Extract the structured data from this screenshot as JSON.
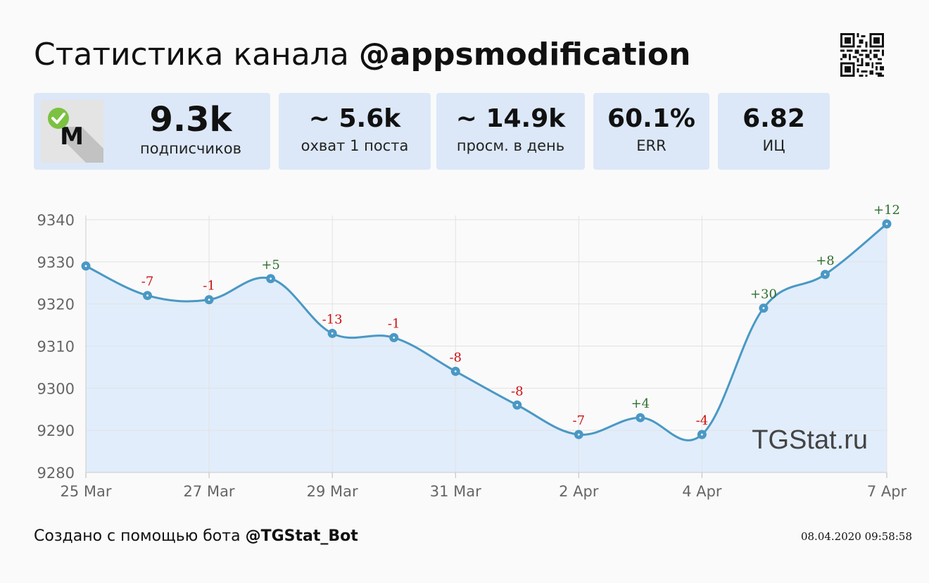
{
  "header": {
    "title_prefix": "Статистика канала ",
    "channel_handle": "@appsmodification"
  },
  "stats": [
    {
      "value": "9.3k",
      "label": "подписчиков"
    },
    {
      "value": "~ 5.6k",
      "label": "охват 1 поста"
    },
    {
      "value": "~ 14.9k",
      "label": "просм. в день"
    },
    {
      "value": "60.1%",
      "label": "ERR"
    },
    {
      "value": "6.82",
      "label": "ИЦ"
    }
  ],
  "avatar": {
    "icon": "channel-avatar-icon",
    "badge": "verified-check-icon",
    "letter": "M"
  },
  "chart_data": {
    "type": "line",
    "title": "",
    "xlabel": "",
    "ylabel": "",
    "watermark": "TGStat.ru",
    "x": [
      "25 Mar",
      "26 Mar",
      "27 Mar",
      "28 Mar",
      "29 Mar",
      "30 Mar",
      "31 Mar",
      "1 Apr",
      "2 Apr",
      "3 Apr",
      "4 Apr",
      "5 Apr",
      "6 Apr",
      "7 Apr"
    ],
    "x_tick_labels": [
      "25 Mar",
      "27 Mar",
      "29 Mar",
      "31 Mar",
      "2 Apr",
      "4 Apr",
      "7 Apr"
    ],
    "series": [
      {
        "values": [
          9329,
          9322,
          9321,
          9326,
          9313,
          9312,
          9304,
          9296,
          9289,
          9293,
          9289,
          9319,
          9327,
          9339
        ]
      }
    ],
    "point_labels": [
      "",
      "-7",
      "-1",
      "+5",
      "-13",
      "-1",
      "-8",
      "-8",
      "-7",
      "+4",
      "-4",
      "+30",
      "+8",
      "+12"
    ],
    "y_ticks": [
      9280,
      9290,
      9300,
      9310,
      9320,
      9330,
      9340
    ],
    "ylim": [
      9280,
      9341
    ],
    "grid": true,
    "colors": {
      "line": "#4a98c4",
      "area": "#deebfb",
      "positive": "#2e6f2e",
      "negative": "#cc1111"
    }
  },
  "footer": {
    "prefix": "Создано с помощью бота ",
    "bot_handle": "@TGStat_Bot",
    "timestamp": "08.04.2020 09:58:58"
  }
}
